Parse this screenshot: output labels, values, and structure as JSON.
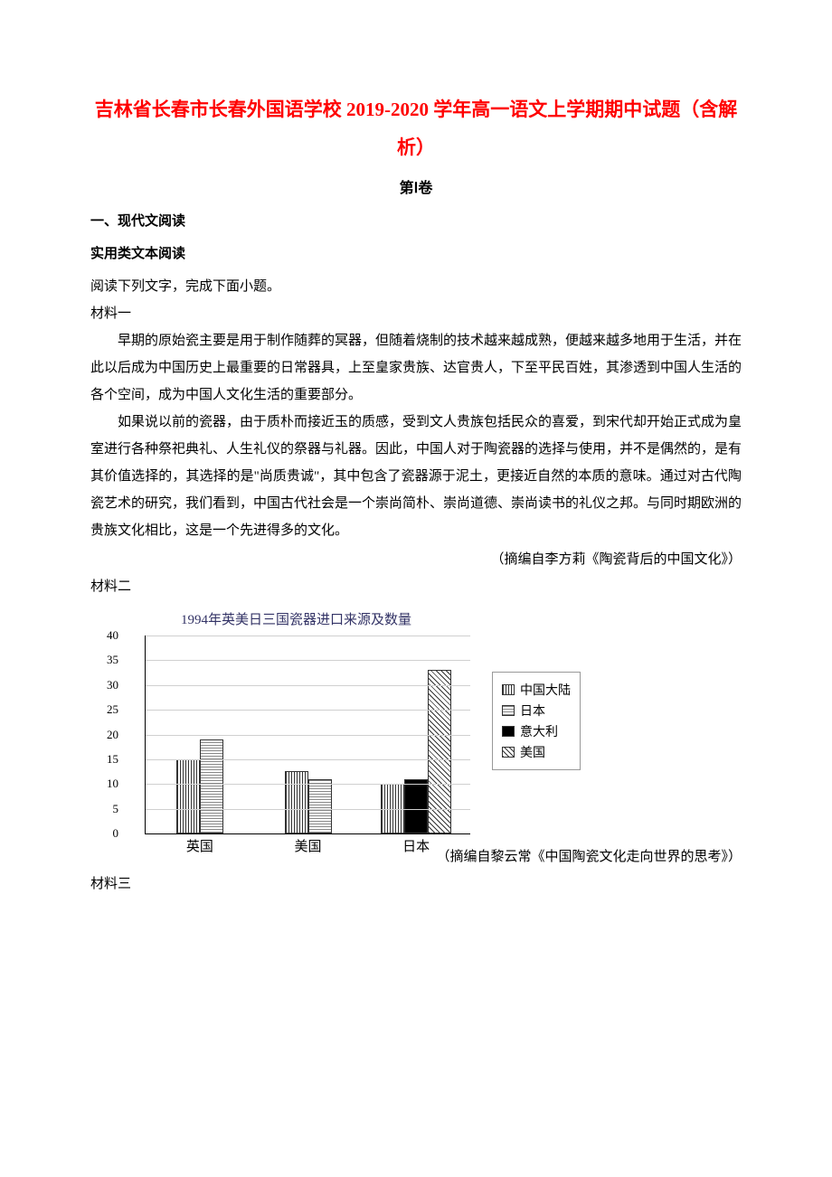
{
  "title": "吉林省长春市长春外国语学校 2019-2020 学年高一语文上学期期中试题（含解析）",
  "subtitle": "第Ⅰ卷",
  "section1": "一、现代文阅读",
  "section2": "实用类文本阅读",
  "instruction": "阅读下列文字，完成下面小题。",
  "mat1_label": "材料一",
  "mat1_para1": "早期的原始瓷主要是用于制作随葬的冥器，但随着烧制的技术越来越成熟，便越来越多地用于生活，并在此以后成为中国历史上最重要的日常器具，上至皇家贵族、达官贵人，下至平民百姓，其渗透到中国人生活的各个空间，成为中国人文化生活的重要部分。",
  "mat1_para2": "如果说以前的瓷器，由于质朴而接近玉的质感，受到文人贵族包括民众的喜爱，到宋代却开始正式成为皇室进行各种祭祀典礼、人生礼仪的祭器与礼器。因此，中国人对于陶瓷器的选择与使用，并不是偶然的，是有其价值选择的，其选择的是\"尚质贵诚\"，其中包含了瓷器源于泥土，更接近自然的本质的意味。通过对古代陶瓷艺术的研究，我们看到，中国古代社会是一个崇尚简朴、崇尚道德、崇尚读书的礼仪之邦。与同时期欧洲的贵族文化相比，这是一个先进得多的文化。",
  "mat1_source": "（摘编自李方莉《陶瓷背后的中国文化》）",
  "mat2_label": "材料二",
  "mat2_source": "（摘编自黎云常《中国陶瓷文化走向世界的思考》）",
  "mat3_label": "材料三",
  "chart": {
    "title": "1994年英美日三国瓷器进口来源及数量",
    "y_max": 40,
    "y_ticks": [
      0,
      5,
      10,
      15,
      20,
      25,
      30,
      35,
      40
    ],
    "categories": [
      "英国",
      "美国",
      "日本"
    ],
    "series": [
      {
        "name": "中国大陆",
        "pattern": "pattern-vertical",
        "values": [
          15,
          12.5,
          10
        ]
      },
      {
        "name": "日本",
        "pattern": "pattern-grid",
        "values": [
          19,
          11,
          null
        ]
      },
      {
        "name": "意大利",
        "pattern": "pattern-solid",
        "values": [
          null,
          null,
          11
        ]
      },
      {
        "name": "美国",
        "pattern": "pattern-diag",
        "values": [
          null,
          null,
          33
        ]
      }
    ],
    "legend": [
      {
        "label": "中国大陆",
        "pattern": "pattern-vertical"
      },
      {
        "label": "日本",
        "pattern": "pattern-grid"
      },
      {
        "label": "意大利",
        "pattern": "pattern-solid"
      },
      {
        "label": "美国",
        "pattern": "pattern-diag"
      }
    ]
  }
}
